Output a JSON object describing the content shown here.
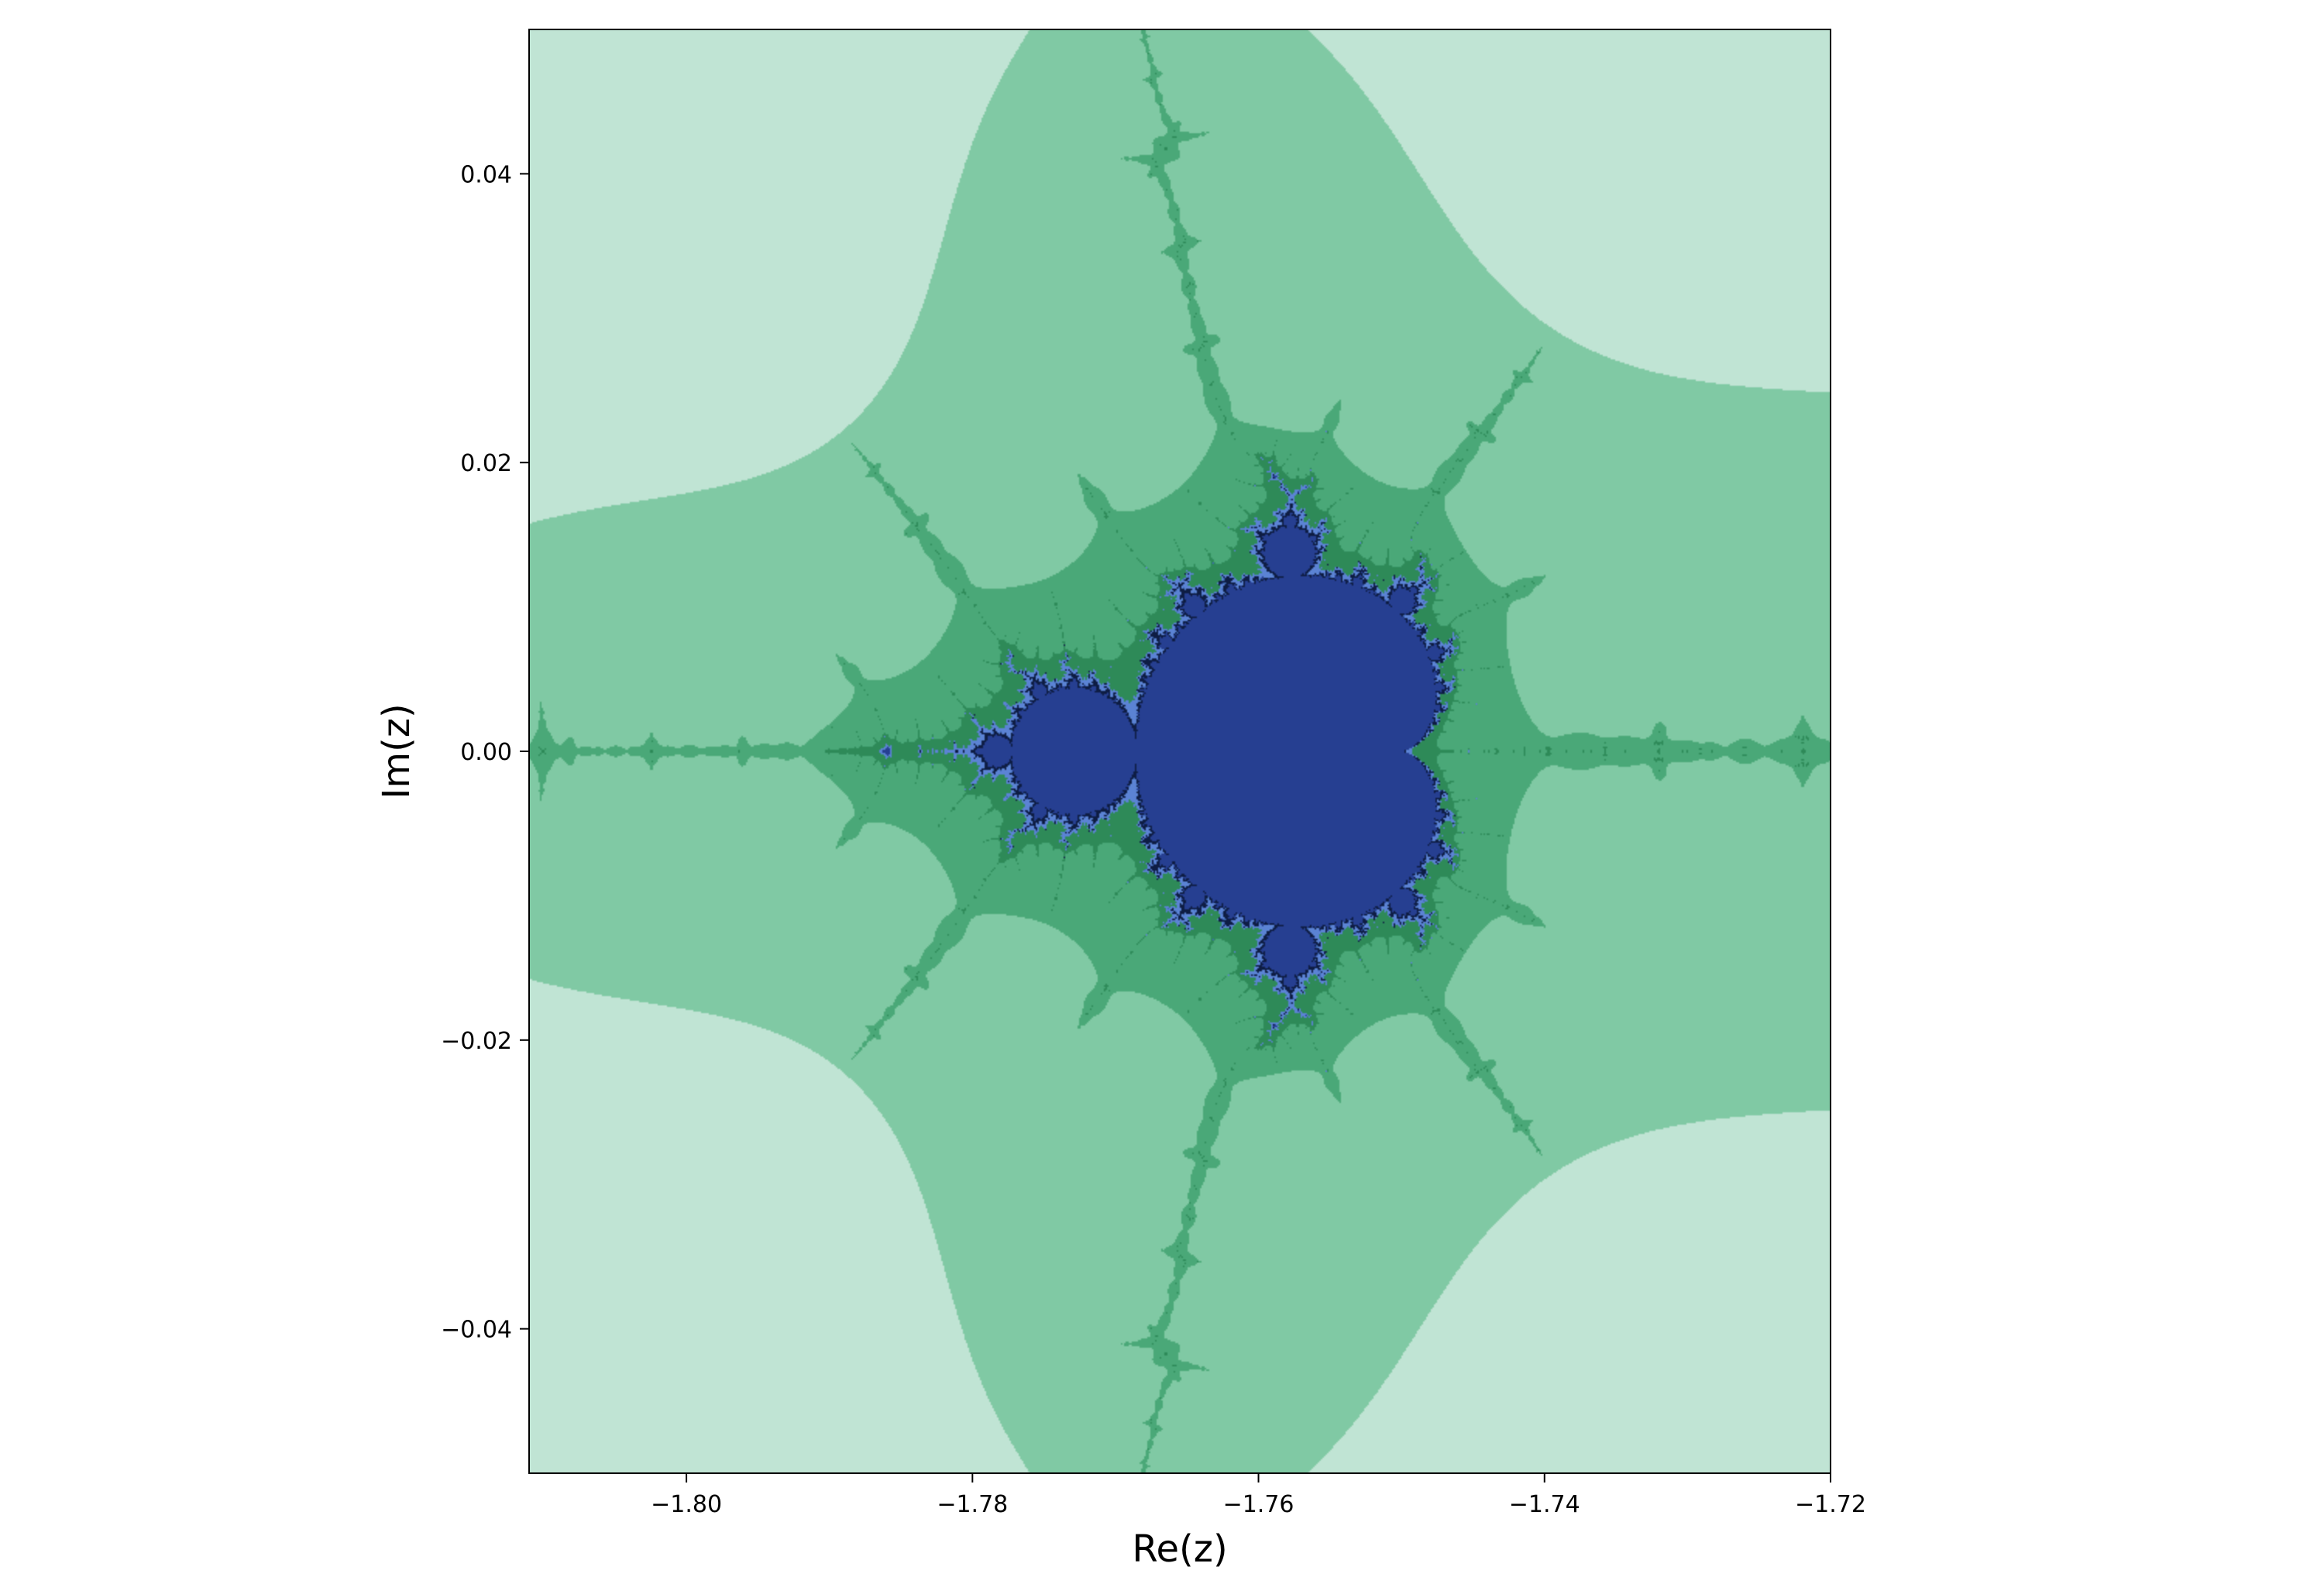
{
  "chart_data": {
    "type": "heatmap",
    "title": "",
    "xlabel": "Re(z)",
    "ylabel": "Im(z)",
    "xlim": [
      -1.811,
      -1.72
    ],
    "ylim": [
      -0.05,
      0.05
    ],
    "x_ticks": [
      {
        "value": -1.8,
        "label": "−1.80"
      },
      {
        "value": -1.78,
        "label": "−1.78"
      },
      {
        "value": -1.76,
        "label": "−1.76"
      },
      {
        "value": -1.74,
        "label": "−1.74"
      },
      {
        "value": -1.72,
        "label": "−1.72"
      }
    ],
    "y_ticks": [
      {
        "value": 0.04,
        "label": "0.04"
      },
      {
        "value": 0.02,
        "label": "0.02"
      },
      {
        "value": 0.0,
        "label": "0.00"
      },
      {
        "value": -0.02,
        "label": "−0.02"
      },
      {
        "value": -0.04,
        "label": "−0.04"
      }
    ],
    "grid": false,
    "legend": "none",
    "colors": {
      "level_0": "#c0e4d4",
      "level_1": "#80c9a4",
      "level_2": "#4aa878",
      "level_3": "#2e8a58",
      "level_4": "#5b83d4",
      "level_5": "#3f6ab4",
      "level_6": "#2f55a2",
      "level_7": "#243e8c",
      "set": "#263f91",
      "boundary": "#0e1d44"
    }
  }
}
